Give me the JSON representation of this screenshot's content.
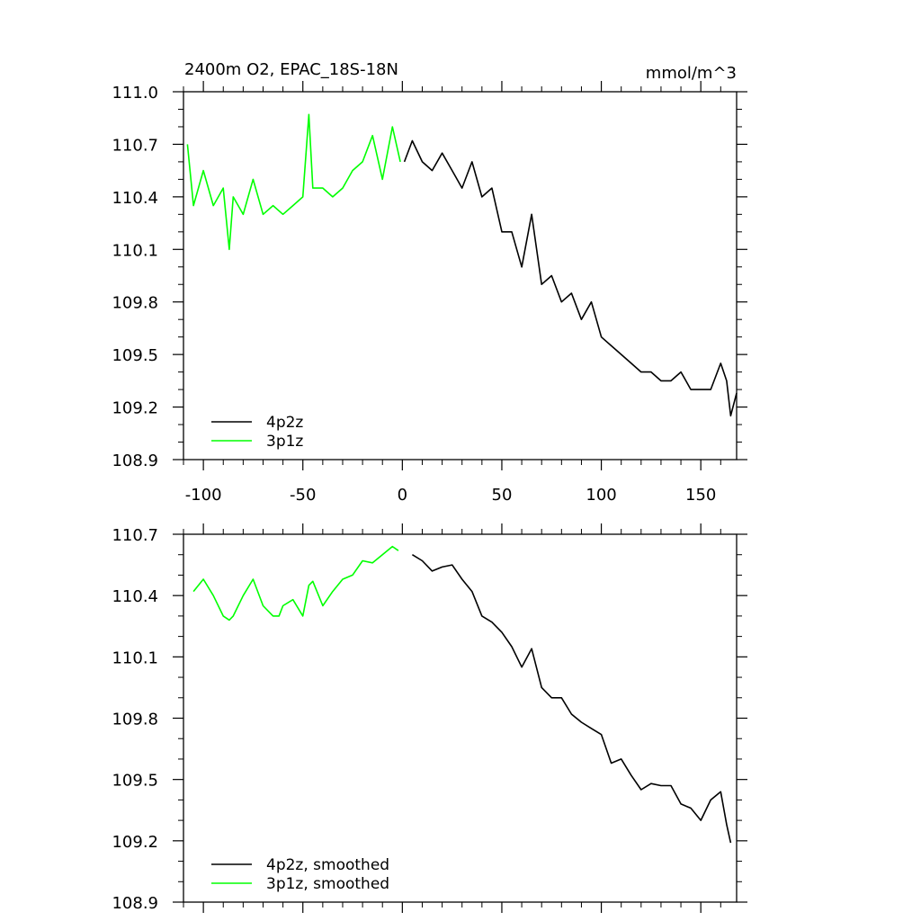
{
  "chart_data": [
    {
      "type": "line",
      "title": "2400m O2, EPAC_18S-18N",
      "units_label": "mmol/m^3",
      "xlim": [
        -110,
        168
      ],
      "ylim": [
        108.9,
        111.0
      ],
      "x_ticks": [
        -100,
        -50,
        0,
        50,
        100,
        150
      ],
      "x_tick_labels": [
        "-100",
        "-50",
        "0",
        "50",
        "100",
        "150"
      ],
      "y_ticks": [
        108.9,
        109.2,
        109.5,
        109.8,
        110.1,
        110.4,
        110.7,
        111.0
      ],
      "y_tick_labels": [
        "108.9",
        "109.2",
        "109.5",
        "109.8",
        "110.1",
        "110.4",
        "110.7",
        "111.0"
      ],
      "legend_position": "bottom-left",
      "series": [
        {
          "name": "4p2z",
          "color": "#000000",
          "x": [
            1,
            5,
            10,
            15,
            20,
            25,
            30,
            35,
            40,
            45,
            50,
            55,
            60,
            65,
            70,
            75,
            80,
            85,
            90,
            95,
            100,
            105,
            110,
            115,
            120,
            125,
            130,
            135,
            140,
            145,
            150,
            155,
            160,
            163,
            165,
            168
          ],
          "y": [
            110.6,
            110.72,
            110.6,
            110.55,
            110.65,
            110.55,
            110.45,
            110.6,
            110.4,
            110.45,
            110.2,
            110.2,
            110.0,
            110.3,
            109.9,
            109.95,
            109.8,
            109.85,
            109.7,
            109.8,
            109.6,
            109.55,
            109.5,
            109.45,
            109.4,
            109.4,
            109.35,
            109.35,
            109.4,
            109.3,
            109.3,
            109.3,
            109.45,
            109.35,
            109.15,
            109.28
          ]
        },
        {
          "name": "3p1z",
          "color": "#00ff00",
          "x": [
            -108,
            -105,
            -100,
            -95,
            -90,
            -87,
            -85,
            -80,
            -75,
            -70,
            -65,
            -60,
            -55,
            -50,
            -47,
            -45,
            -40,
            -35,
            -30,
            -25,
            -20,
            -15,
            -10,
            -5,
            -1
          ],
          "y": [
            110.7,
            110.35,
            110.55,
            110.35,
            110.45,
            110.1,
            110.4,
            110.3,
            110.5,
            110.3,
            110.35,
            110.3,
            110.35,
            110.4,
            110.87,
            110.45,
            110.45,
            110.4,
            110.45,
            110.55,
            110.6,
            110.75,
            110.5,
            110.8,
            110.6
          ]
        }
      ]
    },
    {
      "type": "line",
      "xlim": [
        -110,
        168
      ],
      "ylim": [
        108.9,
        110.7
      ],
      "x_ticks": [
        -100,
        -50,
        0,
        50,
        100,
        150
      ],
      "y_ticks": [
        108.9,
        109.2,
        109.5,
        109.8,
        110.1,
        110.4,
        110.7
      ],
      "y_tick_labels": [
        "108.9",
        "109.2",
        "109.5",
        "109.8",
        "110.1",
        "110.4",
        "110.7"
      ],
      "legend_position": "bottom-left",
      "series": [
        {
          "name": "4p2z, smoothed",
          "color": "#000000",
          "x": [
            5,
            10,
            15,
            20,
            25,
            30,
            35,
            40,
            45,
            50,
            55,
            60,
            65,
            70,
            75,
            80,
            85,
            90,
            95,
            100,
            105,
            110,
            115,
            120,
            125,
            130,
            135,
            140,
            145,
            150,
            155,
            160,
            163,
            165
          ],
          "y": [
            110.6,
            110.57,
            110.52,
            110.54,
            110.55,
            110.48,
            110.42,
            110.3,
            110.27,
            110.22,
            110.15,
            110.05,
            110.14,
            109.95,
            109.9,
            109.9,
            109.82,
            109.78,
            109.75,
            109.72,
            109.58,
            109.6,
            109.52,
            109.45,
            109.48,
            109.47,
            109.47,
            109.38,
            109.36,
            109.3,
            109.4,
            109.44,
            109.28,
            109.19
          ]
        },
        {
          "name": "3p1z, smoothed",
          "color": "#00ff00",
          "x": [
            -105,
            -100,
            -95,
            -90,
            -87,
            -85,
            -80,
            -75,
            -70,
            -65,
            -62,
            -60,
            -55,
            -50,
            -47,
            -45,
            -40,
            -35,
            -30,
            -25,
            -20,
            -15,
            -10,
            -5,
            -2
          ],
          "y": [
            110.42,
            110.48,
            110.4,
            110.3,
            110.28,
            110.3,
            110.4,
            110.48,
            110.35,
            110.3,
            110.3,
            110.35,
            110.38,
            110.3,
            110.45,
            110.47,
            110.35,
            110.42,
            110.48,
            110.5,
            110.57,
            110.56,
            110.6,
            110.64,
            110.62
          ]
        }
      ]
    }
  ]
}
